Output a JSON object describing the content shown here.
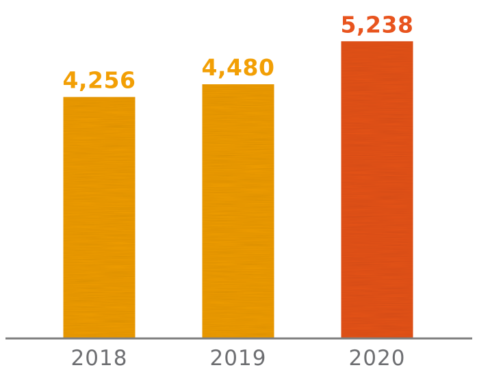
{
  "chart_data": {
    "type": "bar",
    "categories": [
      "2018",
      "2019",
      "2020"
    ],
    "values": [
      4256,
      4480,
      5238
    ],
    "value_labels": [
      "4,256",
      "4,480",
      "5,238"
    ],
    "bar_colors": [
      "#f29f05",
      "#f29f05",
      "#e8541e"
    ],
    "label_colors": [
      "#f29f05",
      "#f29f05",
      "#e8541e"
    ],
    "axis_color": "#7f7f7f",
    "tick_label_color": "#6d6e71",
    "bar_texture": "linen",
    "ylim": [
      0,
      5700
    ],
    "grid": false,
    "legend": "none",
    "title": "",
    "xlabel": "",
    "ylabel": ""
  }
}
